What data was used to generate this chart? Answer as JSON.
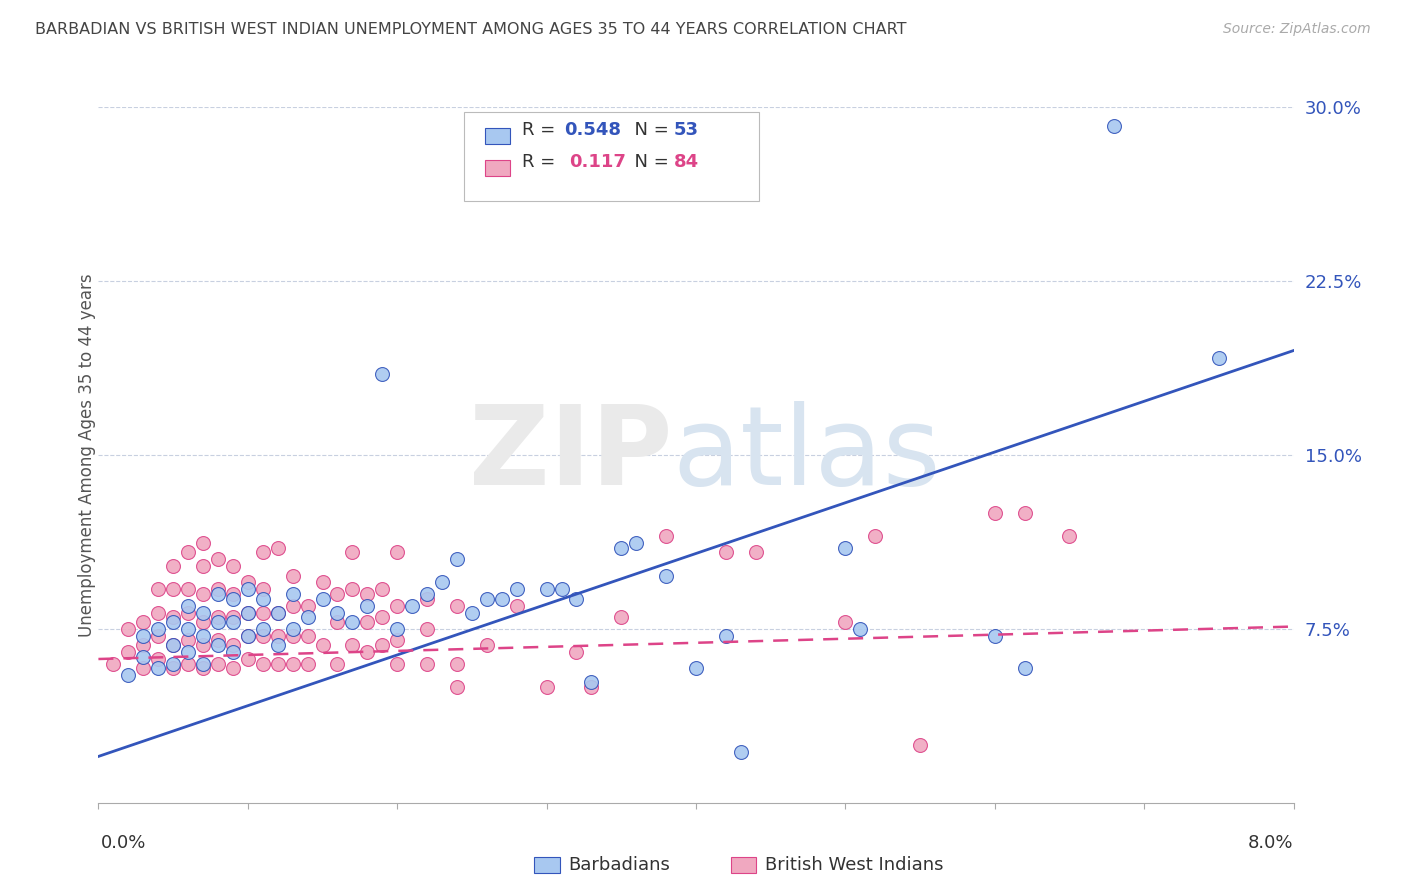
{
  "title": "BARBADIAN VS BRITISH WEST INDIAN UNEMPLOYMENT AMONG AGES 35 TO 44 YEARS CORRELATION CHART",
  "source": "Source: ZipAtlas.com",
  "ylabel": "Unemployment Among Ages 35 to 44 years",
  "legend_label1": "Barbadians",
  "legend_label2": "British West Indians",
  "blue_color": "#a8c8f0",
  "pink_color": "#f0a8c0",
  "blue_line_color": "#3355bb",
  "pink_line_color": "#dd4488",
  "xmin": 0.0,
  "xmax": 0.08,
  "ymin": 0.0,
  "ymax": 0.3,
  "ytick_values": [
    0.075,
    0.15,
    0.225,
    0.3
  ],
  "blue_line_x": [
    0.0,
    0.08
  ],
  "blue_line_y": [
    0.02,
    0.195
  ],
  "pink_line_x": [
    0.0,
    0.08
  ],
  "pink_line_y": [
    0.062,
    0.076
  ],
  "blue_scatter": [
    [
      0.002,
      0.055
    ],
    [
      0.003,
      0.063
    ],
    [
      0.003,
      0.072
    ],
    [
      0.004,
      0.058
    ],
    [
      0.004,
      0.075
    ],
    [
      0.005,
      0.06
    ],
    [
      0.005,
      0.068
    ],
    [
      0.005,
      0.078
    ],
    [
      0.006,
      0.065
    ],
    [
      0.006,
      0.075
    ],
    [
      0.006,
      0.085
    ],
    [
      0.007,
      0.06
    ],
    [
      0.007,
      0.072
    ],
    [
      0.007,
      0.082
    ],
    [
      0.008,
      0.068
    ],
    [
      0.008,
      0.078
    ],
    [
      0.008,
      0.09
    ],
    [
      0.009,
      0.065
    ],
    [
      0.009,
      0.078
    ],
    [
      0.009,
      0.088
    ],
    [
      0.01,
      0.072
    ],
    [
      0.01,
      0.082
    ],
    [
      0.01,
      0.092
    ],
    [
      0.011,
      0.075
    ],
    [
      0.011,
      0.088
    ],
    [
      0.012,
      0.068
    ],
    [
      0.012,
      0.082
    ],
    [
      0.013,
      0.075
    ],
    [
      0.013,
      0.09
    ],
    [
      0.014,
      0.08
    ],
    [
      0.015,
      0.088
    ],
    [
      0.016,
      0.082
    ],
    [
      0.017,
      0.078
    ],
    [
      0.018,
      0.085
    ],
    [
      0.019,
      0.185
    ],
    [
      0.02,
      0.075
    ],
    [
      0.021,
      0.085
    ],
    [
      0.022,
      0.09
    ],
    [
      0.023,
      0.095
    ],
    [
      0.024,
      0.105
    ],
    [
      0.025,
      0.082
    ],
    [
      0.026,
      0.088
    ],
    [
      0.027,
      0.088
    ],
    [
      0.028,
      0.092
    ],
    [
      0.03,
      0.092
    ],
    [
      0.031,
      0.092
    ],
    [
      0.032,
      0.088
    ],
    [
      0.033,
      0.052
    ],
    [
      0.035,
      0.11
    ],
    [
      0.036,
      0.112
    ],
    [
      0.038,
      0.098
    ],
    [
      0.04,
      0.058
    ],
    [
      0.042,
      0.072
    ],
    [
      0.043,
      0.022
    ],
    [
      0.05,
      0.11
    ],
    [
      0.051,
      0.075
    ],
    [
      0.06,
      0.072
    ],
    [
      0.062,
      0.058
    ],
    [
      0.068,
      0.292
    ],
    [
      0.075,
      0.192
    ]
  ],
  "pink_scatter": [
    [
      0.001,
      0.06
    ],
    [
      0.002,
      0.065
    ],
    [
      0.002,
      0.075
    ],
    [
      0.003,
      0.058
    ],
    [
      0.003,
      0.068
    ],
    [
      0.003,
      0.078
    ],
    [
      0.004,
      0.062
    ],
    [
      0.004,
      0.072
    ],
    [
      0.004,
      0.082
    ],
    [
      0.004,
      0.092
    ],
    [
      0.005,
      0.058
    ],
    [
      0.005,
      0.068
    ],
    [
      0.005,
      0.08
    ],
    [
      0.005,
      0.092
    ],
    [
      0.005,
      0.102
    ],
    [
      0.006,
      0.06
    ],
    [
      0.006,
      0.07
    ],
    [
      0.006,
      0.082
    ],
    [
      0.006,
      0.092
    ],
    [
      0.006,
      0.108
    ],
    [
      0.007,
      0.058
    ],
    [
      0.007,
      0.068
    ],
    [
      0.007,
      0.078
    ],
    [
      0.007,
      0.09
    ],
    [
      0.007,
      0.102
    ],
    [
      0.007,
      0.112
    ],
    [
      0.008,
      0.06
    ],
    [
      0.008,
      0.07
    ],
    [
      0.008,
      0.08
    ],
    [
      0.008,
      0.092
    ],
    [
      0.008,
      0.105
    ],
    [
      0.009,
      0.058
    ],
    [
      0.009,
      0.068
    ],
    [
      0.009,
      0.08
    ],
    [
      0.009,
      0.09
    ],
    [
      0.009,
      0.102
    ],
    [
      0.01,
      0.062
    ],
    [
      0.01,
      0.072
    ],
    [
      0.01,
      0.082
    ],
    [
      0.01,
      0.095
    ],
    [
      0.011,
      0.06
    ],
    [
      0.011,
      0.072
    ],
    [
      0.011,
      0.082
    ],
    [
      0.011,
      0.092
    ],
    [
      0.011,
      0.108
    ],
    [
      0.012,
      0.06
    ],
    [
      0.012,
      0.072
    ],
    [
      0.012,
      0.082
    ],
    [
      0.012,
      0.11
    ],
    [
      0.013,
      0.06
    ],
    [
      0.013,
      0.072
    ],
    [
      0.013,
      0.085
    ],
    [
      0.013,
      0.098
    ],
    [
      0.014,
      0.06
    ],
    [
      0.014,
      0.072
    ],
    [
      0.014,
      0.085
    ],
    [
      0.015,
      0.068
    ],
    [
      0.015,
      0.095
    ],
    [
      0.016,
      0.06
    ],
    [
      0.016,
      0.078
    ],
    [
      0.016,
      0.09
    ],
    [
      0.017,
      0.068
    ],
    [
      0.017,
      0.092
    ],
    [
      0.017,
      0.108
    ],
    [
      0.018,
      0.065
    ],
    [
      0.018,
      0.078
    ],
    [
      0.018,
      0.09
    ],
    [
      0.019,
      0.068
    ],
    [
      0.019,
      0.08
    ],
    [
      0.019,
      0.092
    ],
    [
      0.02,
      0.06
    ],
    [
      0.02,
      0.07
    ],
    [
      0.02,
      0.085
    ],
    [
      0.02,
      0.108
    ],
    [
      0.022,
      0.06
    ],
    [
      0.022,
      0.075
    ],
    [
      0.022,
      0.088
    ],
    [
      0.024,
      0.06
    ],
    [
      0.024,
      0.085
    ],
    [
      0.024,
      0.05
    ],
    [
      0.026,
      0.068
    ],
    [
      0.028,
      0.085
    ],
    [
      0.03,
      0.05
    ],
    [
      0.032,
      0.065
    ],
    [
      0.033,
      0.05
    ],
    [
      0.035,
      0.08
    ],
    [
      0.038,
      0.115
    ],
    [
      0.042,
      0.108
    ],
    [
      0.044,
      0.108
    ],
    [
      0.05,
      0.078
    ],
    [
      0.052,
      0.115
    ],
    [
      0.055,
      0.025
    ],
    [
      0.06,
      0.125
    ],
    [
      0.062,
      0.125
    ],
    [
      0.065,
      0.115
    ]
  ]
}
